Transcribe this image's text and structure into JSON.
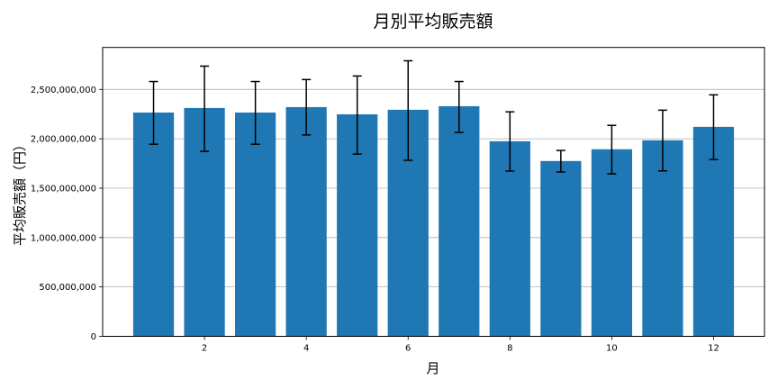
{
  "chart_data": {
    "type": "bar",
    "title": "月別平均販売額",
    "xlabel": "月",
    "ylabel": "平均販売額（円）",
    "categories": [
      1,
      2,
      3,
      4,
      5,
      6,
      7,
      8,
      9,
      10,
      11,
      12
    ],
    "values": [
      2266000000,
      2312000000,
      2266000000,
      2321000000,
      2248000000,
      2294000000,
      2330000000,
      1975000000,
      1775000000,
      1894000000,
      1985000000,
      2121000000
    ],
    "error_upper": [
      2580000000,
      2736000000,
      2580000000,
      2600000000,
      2636000000,
      2790000000,
      2580000000,
      2273000000,
      1882000000,
      2136000000,
      2290000000,
      2445000000
    ],
    "error_lower": [
      1945000000,
      1873000000,
      1945000000,
      2039000000,
      1845000000,
      1782000000,
      2064000000,
      1673000000,
      1664000000,
      1645000000,
      1675000000,
      1790000000
    ],
    "xticks": [
      2,
      4,
      6,
      8,
      10,
      12
    ],
    "yticks": [
      0,
      500000000,
      1000000000,
      1500000000,
      2000000000,
      2500000000
    ],
    "ytick_labels": [
      "0",
      "500,000,000",
      "1,000,000,000",
      "1,500,000,000",
      "2,000,000,000",
      "2,500,000,000"
    ],
    "xlim": [
      0.0,
      13.0
    ],
    "ylim": [
      0,
      2925000000
    ],
    "grid": "y",
    "legend": null,
    "colors": {
      "bar": "#1f77b4",
      "error": "#000000",
      "grid": "#b0b0b0",
      "axis": "#000000"
    }
  }
}
